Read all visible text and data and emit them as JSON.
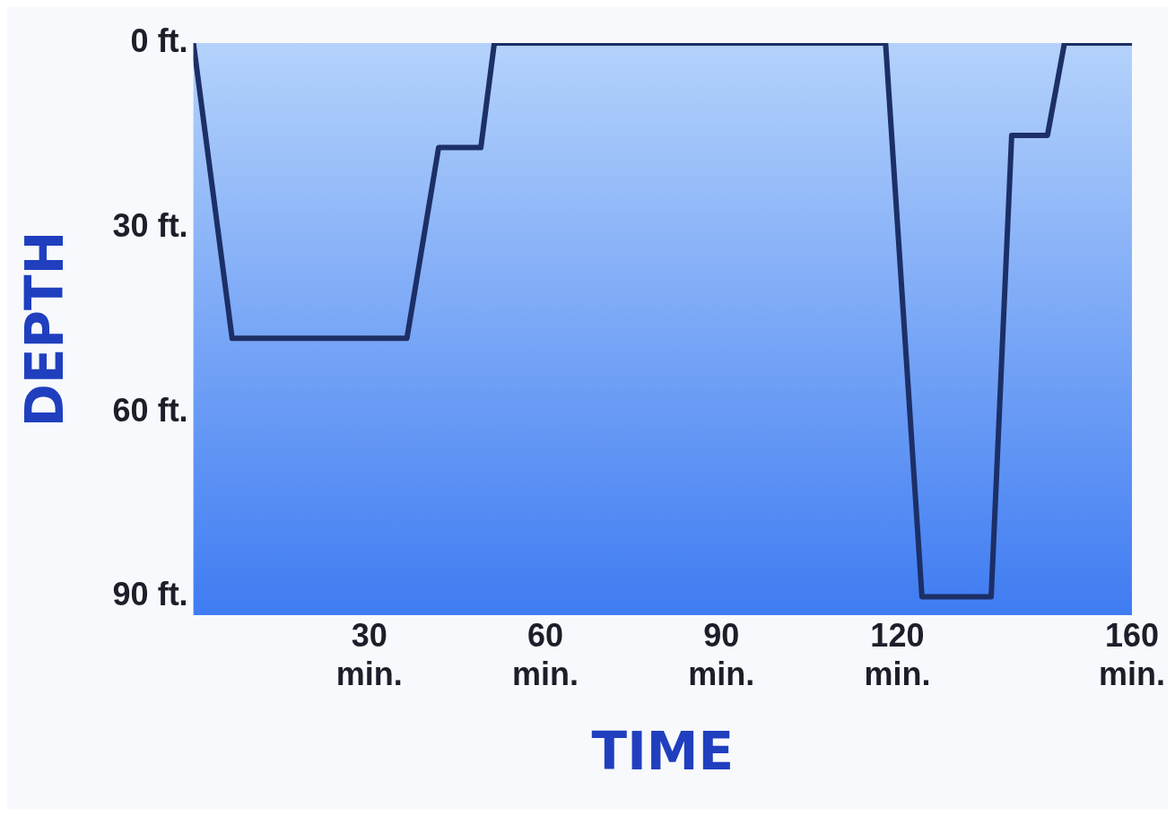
{
  "chart_data": {
    "type": "line",
    "xlabel": "TIME",
    "ylabel": "DEPTH",
    "x": [
      0,
      6.6,
      36.4,
      41.8,
      49,
      51.3,
      118,
      124.2,
      136,
      139.5,
      145.6,
      148.5,
      160
    ],
    "series": [
      {
        "color": "#1c2f66",
        "values": [
          0,
          48,
          48,
          17,
          17,
          0,
          0,
          90,
          90,
          15,
          15,
          0,
          0
        ]
      }
    ],
    "xlim": [
      0,
      160
    ],
    "xticks": [
      {
        "value": 30,
        "label": "30 min."
      },
      {
        "value": 60,
        "label": "60 min."
      },
      {
        "value": 90,
        "label": "90 min."
      },
      {
        "value": 120,
        "label": "120 min."
      },
      {
        "value": 160,
        "label": "160 min."
      }
    ],
    "ylim": [
      93,
      0
    ],
    "yticks": [
      {
        "value": 0,
        "label": "0 ft."
      },
      {
        "value": 30,
        "label": "30 ft."
      },
      {
        "value": 60,
        "label": "60 ft."
      },
      {
        "value": 90,
        "label": "90 ft."
      }
    ],
    "grid": false,
    "legend": false,
    "marker": "none",
    "line_style": "solid"
  }
}
